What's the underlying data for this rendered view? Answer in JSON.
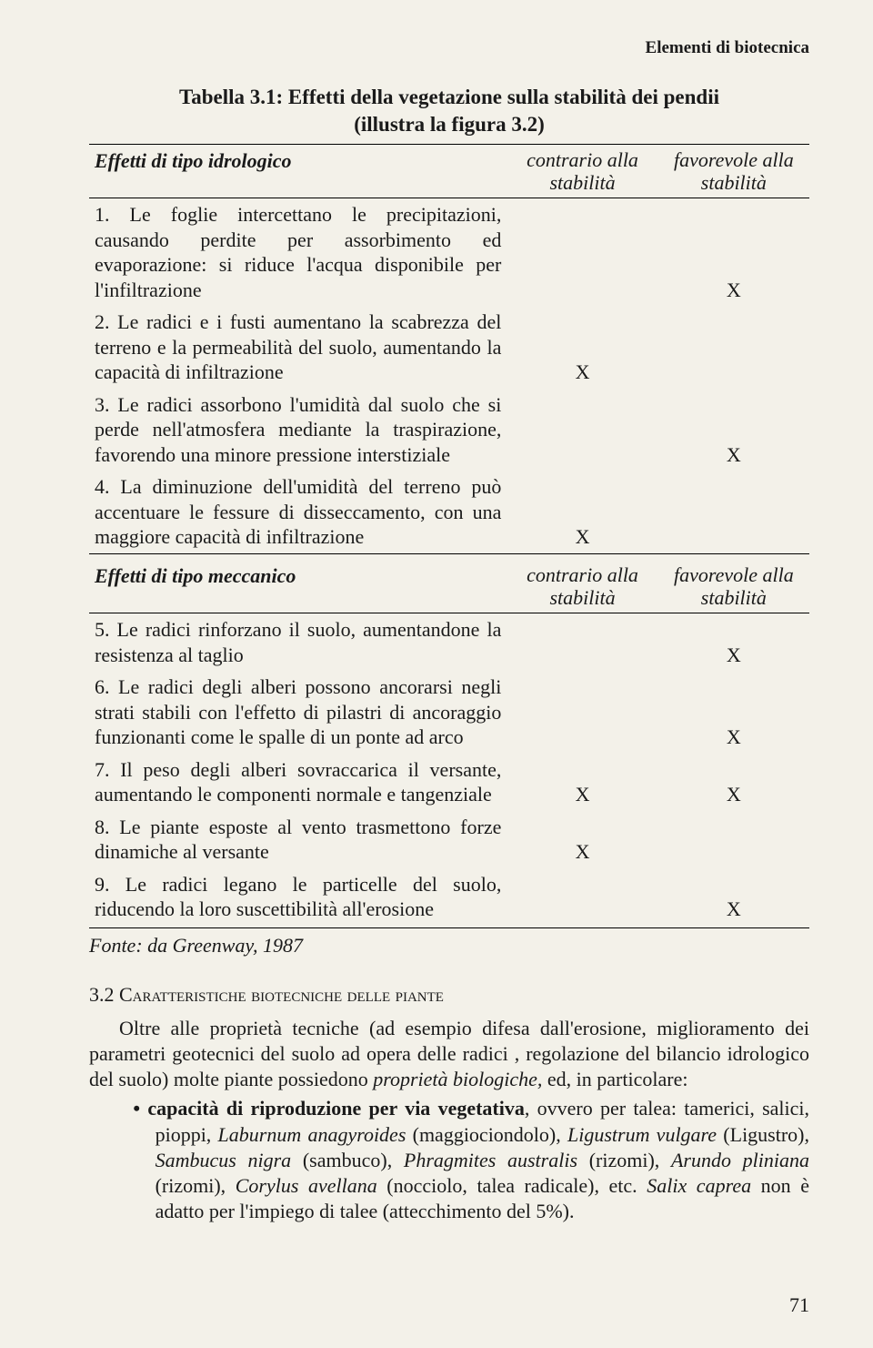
{
  "running_head": "Elementi di biotecnica",
  "table": {
    "title_line1": "Tabella 3.1: Effetti della vegetazione sulla stabilità dei pendii",
    "title_line2": "(illustra la figura 3.2)",
    "head1_label": "Effetti di tipo idrologico",
    "head_col1_a": "contrario alla",
    "head_col1_b": "stabilità",
    "head_col2_a": "favorevole alla",
    "head_col2_b": "stabilità",
    "rows1": [
      {
        "text": "1. Le foglie intercettano le precipitazioni, causando perdite per assorbimento ed evaporazione: si riduce l'acqua disponibile per l'infiltrazione",
        "c1": "",
        "c2": "X"
      },
      {
        "text": "2. Le radici e i fusti aumentano la scabrezza del terreno e la permeabilità del suolo, aumentando la capacità di infiltrazione",
        "c1": "X",
        "c2": ""
      },
      {
        "text": "3. Le radici assorbono l'umidità dal suolo che si perde nell'atmosfera mediante la traspirazione, favorendo una minore pressione interstiziale",
        "c1": "",
        "c2": "X"
      },
      {
        "text": "4. La diminuzione dell'umidità del terreno può accentuare le fessure di disseccamento, con una maggiore capacità di infiltrazione",
        "c1": "X",
        "c2": ""
      }
    ],
    "head2_label": "Effetti di tipo meccanico",
    "rows2": [
      {
        "text": "5. Le radici rinforzano il suolo, aumentandone la resistenza al taglio",
        "c1": "",
        "c2": "X"
      },
      {
        "text": "6. Le radici degli alberi possono ancorarsi negli strati stabili con l'effetto di pilastri di ancoraggio funzionanti come le spalle di un ponte ad arco",
        "c1": "",
        "c2": "X"
      },
      {
        "text": "7. Il peso degli alberi sovraccarica il versante, aumentando le componenti normale e tangenziale",
        "c1": "X",
        "c2": "X"
      },
      {
        "text": "8. Le piante esposte al vento trasmettono forze dinamiche al versante",
        "c1": "X",
        "c2": ""
      },
      {
        "text": "9. Le radici legano le particelle del suolo, riducendo la loro suscettibilità all'erosione",
        "c1": "",
        "c2": "X"
      }
    ],
    "source": "Fonte: da Greenway, 1987"
  },
  "section": {
    "number": "3.2 ",
    "title_caps": "Caratteristiche biotecniche delle piante",
    "para": "Oltre alle proprietà tecniche (ad esempio difesa dall'erosione, miglioramento dei parametri geotecnici del suolo ad opera delle radici , regolazione del bilancio idrologico del suolo) molte piante possiedono ",
    "para_em": "proprietà biologiche,",
    "para_tail": " ed, in particolare:",
    "bullet_bold": "capacità di riproduzione per via vegetativa",
    "bullet_text1": ", ovvero per talea: tamerici, salici, pioppi, ",
    "bullet_em1": "Laburnum anagyroides",
    "bullet_text2": " (maggiociondolo), ",
    "bullet_em2": "Ligustrum vulgare",
    "bullet_text3": " (Ligustro), ",
    "bullet_em3": "Sambucus nigra",
    "bullet_text4": " (sambuco), ",
    "bullet_em4": "Phragmites australis",
    "bullet_text5": " (rizomi), ",
    "bullet_em5": "Arundo pliniana",
    "bullet_text6": " (rizomi), ",
    "bullet_em6": "Corylus avellana",
    "bullet_text7": " (nocciolo, talea radicale), etc. ",
    "bullet_em7": "Salix caprea",
    "bullet_text8": " non è adatto per l'impiego di talee (attecchimento del 5%)."
  },
  "page_number": "71"
}
